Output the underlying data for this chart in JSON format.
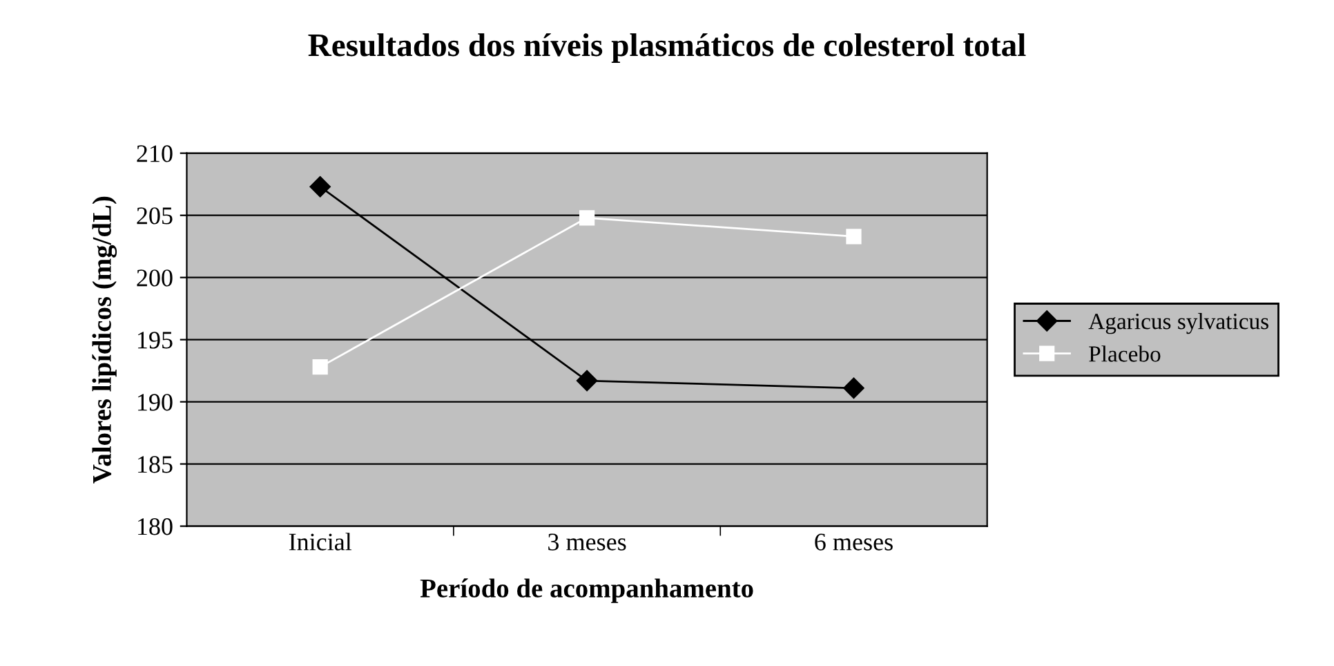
{
  "chart_data": {
    "type": "line",
    "title": "Resultados dos níveis plasmáticos de colesterol total",
    "xlabel": "Período de acompanhamento",
    "ylabel": "Valores lipídicos (mg/dL)",
    "categories": [
      "Inicial",
      "3 meses",
      "6 meses"
    ],
    "series": [
      {
        "name": "Agaricus sylvaticus",
        "color": "#000000",
        "marker": "diamond",
        "values": [
          207.3,
          191.7,
          191.1
        ]
      },
      {
        "name": "Placebo",
        "color": "#ffffff",
        "marker": "square",
        "values": [
          192.8,
          204.8,
          203.3
        ]
      }
    ],
    "ylim": [
      180,
      210
    ],
    "yticks": [
      180,
      185,
      190,
      195,
      200,
      205,
      210
    ],
    "grid": "y",
    "legend": "right"
  }
}
